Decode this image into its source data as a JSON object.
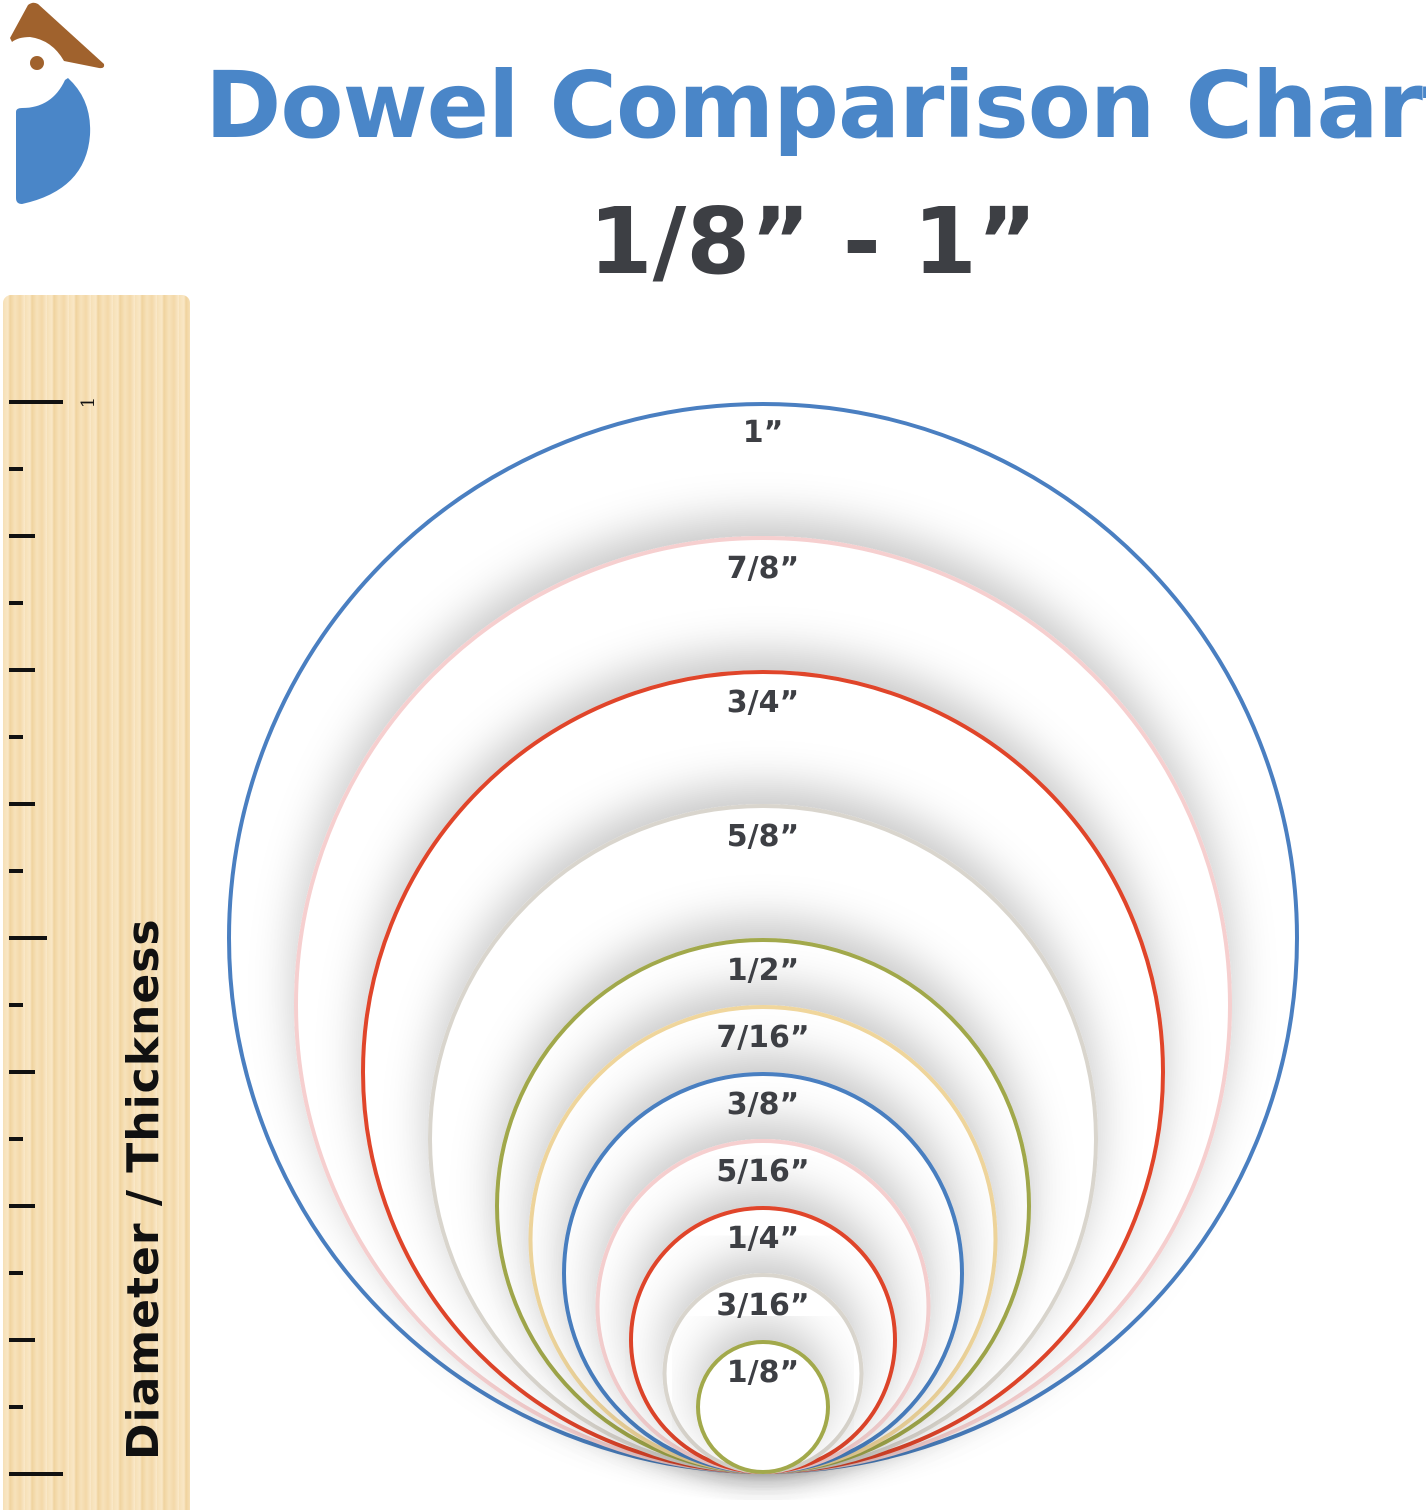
{
  "header": {
    "title": "Dowel Comparison Chart",
    "subtitle": "1/8” - 1”"
  },
  "logo": {
    "colors": {
      "crest": "#a0622d",
      "body": "#4a86c8"
    }
  },
  "ruler": {
    "label": "Diameter / Thickness",
    "number": "1",
    "unit": "inch",
    "subdivision": 16
  },
  "chart_data": {
    "type": "nested-circles",
    "unit": "inch",
    "circles": [
      {
        "label": "1”",
        "diameter": 1,
        "color": "#4a7fc1"
      },
      {
        "label": "7/8”",
        "diameter": 0.875,
        "color": "#f6cfcf"
      },
      {
        "label": "3/4”",
        "diameter": 0.75,
        "color": "#e0452c"
      },
      {
        "label": "5/8”",
        "diameter": 0.625,
        "color": "#d9d5cd"
      },
      {
        "label": "1/2”",
        "diameter": 0.5,
        "color": "#a2a94c"
      },
      {
        "label": "7/16”",
        "diameter": 0.4375,
        "color": "#f0d69c"
      },
      {
        "label": "3/8”",
        "diameter": 0.375,
        "color": "#4a7fc1"
      },
      {
        "label": "5/16”",
        "diameter": 0.3125,
        "color": "#f6cfcf"
      },
      {
        "label": "1/4”",
        "diameter": 0.25,
        "color": "#e0452c"
      },
      {
        "label": "3/16”",
        "diameter": 0.1875,
        "color": "#d9d5cd"
      },
      {
        "label": "1/8”",
        "diameter": 0.125,
        "color": "#a2a94c"
      }
    ]
  }
}
